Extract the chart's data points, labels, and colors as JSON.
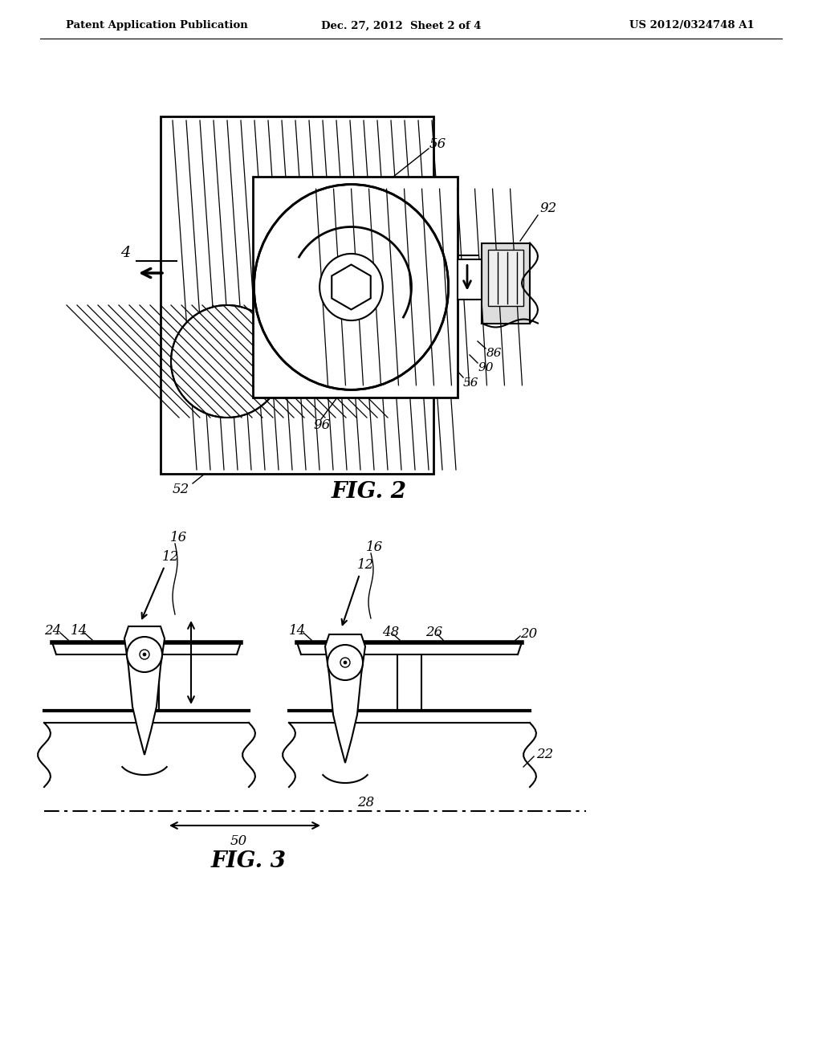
{
  "background_color": "#ffffff",
  "header_left": "Patent Application Publication",
  "header_center": "Dec. 27, 2012  Sheet 2 of 4",
  "header_right": "US 2012/0324748 A1",
  "fig2_title": "FIG. 2",
  "fig3_title": "FIG. 3",
  "line_color": "#000000",
  "text_color": "#000000"
}
